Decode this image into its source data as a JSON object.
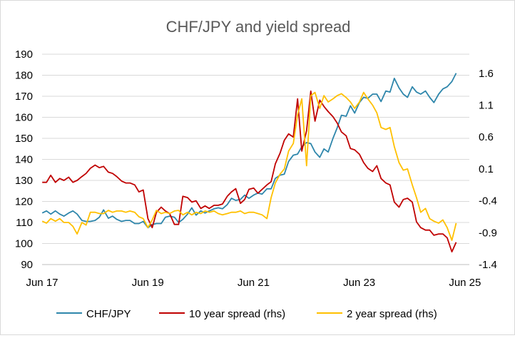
{
  "chart_data": {
    "type": "line",
    "title": "CHF/JPY and yield spread",
    "xlabel": "",
    "ylabel_left": "",
    "ylabel_right": "",
    "x_ticks": [
      "Jun 17",
      "Jun 19",
      "Jun 21",
      "Jun 23",
      "Jun 25"
    ],
    "x_range": [
      2017.417,
      2025.5
    ],
    "y_left": {
      "range": [
        90,
        190
      ],
      "ticks": [
        "90",
        "100",
        "110",
        "120",
        "130",
        "140",
        "150",
        "160",
        "170",
        "180",
        "190"
      ]
    },
    "y_right": {
      "range": [
        -1.4,
        1.9
      ],
      "ticks": [
        "-1.4",
        "-0.9",
        "-0.4",
        "0.1",
        "0.6",
        "1.1",
        "1.6"
      ]
    },
    "grid": true,
    "legend_position": "bottom",
    "series": [
      {
        "name": "CHF/JPY",
        "axis": "left",
        "color": "#2e86ab",
        "points": [
          [
            2017.42,
            114.5
          ],
          [
            2017.5,
            115.5
          ],
          [
            2017.58,
            114
          ],
          [
            2017.67,
            115.5
          ],
          [
            2017.75,
            114
          ],
          [
            2017.83,
            113
          ],
          [
            2017.92,
            114.5
          ],
          [
            2018.0,
            115.5
          ],
          [
            2018.08,
            114
          ],
          [
            2018.17,
            111
          ],
          [
            2018.25,
            110.5
          ],
          [
            2018.33,
            110.5
          ],
          [
            2018.42,
            111
          ],
          [
            2018.5,
            112.5
          ],
          [
            2018.58,
            116
          ],
          [
            2018.67,
            112
          ],
          [
            2018.75,
            113
          ],
          [
            2018.83,
            111.5
          ],
          [
            2018.92,
            110.5
          ],
          [
            2019.0,
            111
          ],
          [
            2019.08,
            111
          ],
          [
            2019.17,
            109.5
          ],
          [
            2019.25,
            109.5
          ],
          [
            2019.33,
            110.5
          ],
          [
            2019.42,
            107.5
          ],
          [
            2019.5,
            109
          ],
          [
            2019.58,
            109.5
          ],
          [
            2019.67,
            109.5
          ],
          [
            2019.75,
            112.5
          ],
          [
            2019.83,
            113
          ],
          [
            2019.92,
            112.5
          ],
          [
            2020.0,
            110
          ],
          [
            2020.08,
            111.5
          ],
          [
            2020.17,
            114
          ],
          [
            2020.25,
            117
          ],
          [
            2020.33,
            113.5
          ],
          [
            2020.42,
            115.5
          ],
          [
            2020.5,
            114.5
          ],
          [
            2020.58,
            115.5
          ],
          [
            2020.67,
            116.5
          ],
          [
            2020.75,
            117
          ],
          [
            2020.83,
            116.5
          ],
          [
            2020.92,
            118.5
          ],
          [
            2021.0,
            121.5
          ],
          [
            2021.08,
            120.5
          ],
          [
            2021.17,
            121
          ],
          [
            2021.25,
            123
          ],
          [
            2021.33,
            121.5
          ],
          [
            2021.42,
            123
          ],
          [
            2021.5,
            124
          ],
          [
            2021.58,
            123.5
          ],
          [
            2021.67,
            126
          ],
          [
            2021.75,
            126
          ],
          [
            2021.83,
            131
          ],
          [
            2021.92,
            132.5
          ],
          [
            2022.0,
            133
          ],
          [
            2022.08,
            139
          ],
          [
            2022.17,
            142
          ],
          [
            2022.25,
            142.5
          ],
          [
            2022.33,
            146
          ],
          [
            2022.42,
            148
          ],
          [
            2022.5,
            147.5
          ],
          [
            2022.58,
            143.5
          ],
          [
            2022.67,
            141
          ],
          [
            2022.75,
            145
          ],
          [
            2022.83,
            143.5
          ],
          [
            2022.92,
            150
          ],
          [
            2023.0,
            155
          ],
          [
            2023.08,
            161
          ],
          [
            2023.17,
            160.5
          ],
          [
            2023.25,
            165.5
          ],
          [
            2023.33,
            162
          ],
          [
            2023.42,
            167
          ],
          [
            2023.5,
            169.5
          ],
          [
            2023.58,
            169
          ],
          [
            2023.67,
            171
          ],
          [
            2023.75,
            171
          ],
          [
            2023.83,
            167.5
          ],
          [
            2023.92,
            172.5
          ],
          [
            2024.0,
            172
          ],
          [
            2024.08,
            178.5
          ],
          [
            2024.17,
            174
          ],
          [
            2024.25,
            171
          ],
          [
            2024.33,
            169.5
          ],
          [
            2024.42,
            174.5
          ],
          [
            2024.5,
            172
          ],
          [
            2024.58,
            171
          ],
          [
            2024.67,
            172.5
          ],
          [
            2024.75,
            169.5
          ],
          [
            2024.83,
            167
          ],
          [
            2024.92,
            171
          ],
          [
            2025.0,
            173.5
          ],
          [
            2025.08,
            174.5
          ],
          [
            2025.17,
            177
          ],
          [
            2025.25,
            181
          ]
        ]
      },
      {
        "name": "10 year spread (rhs)",
        "axis": "right",
        "color": "#c00000",
        "points": [
          [
            2017.42,
            -0.11
          ],
          [
            2017.5,
            -0.11
          ],
          [
            2017.58,
            0.0
          ],
          [
            2017.67,
            -0.11
          ],
          [
            2017.75,
            -0.05
          ],
          [
            2017.83,
            -0.08
          ],
          [
            2017.92,
            -0.03
          ],
          [
            2018.0,
            -0.11
          ],
          [
            2018.08,
            -0.08
          ],
          [
            2018.17,
            -0.02
          ],
          [
            2018.25,
            0.03
          ],
          [
            2018.33,
            0.11
          ],
          [
            2018.42,
            0.16
          ],
          [
            2018.5,
            0.12
          ],
          [
            2018.58,
            0.14
          ],
          [
            2018.67,
            0.05
          ],
          [
            2018.75,
            0.03
          ],
          [
            2018.83,
            -0.02
          ],
          [
            2018.92,
            -0.09
          ],
          [
            2019.0,
            -0.12
          ],
          [
            2019.08,
            -0.12
          ],
          [
            2019.17,
            -0.15
          ],
          [
            2019.25,
            -0.26
          ],
          [
            2019.33,
            -0.23
          ],
          [
            2019.42,
            -0.68
          ],
          [
            2019.5,
            -0.82
          ],
          [
            2019.58,
            -0.58
          ],
          [
            2019.67,
            -0.5
          ],
          [
            2019.75,
            -0.56
          ],
          [
            2019.83,
            -0.6
          ],
          [
            2019.92,
            -0.77
          ],
          [
            2020.0,
            -0.77
          ],
          [
            2020.08,
            -0.33
          ],
          [
            2020.17,
            -0.35
          ],
          [
            2020.25,
            -0.42
          ],
          [
            2020.33,
            -0.4
          ],
          [
            2020.42,
            -0.52
          ],
          [
            2020.5,
            -0.48
          ],
          [
            2020.58,
            -0.52
          ],
          [
            2020.67,
            -0.47
          ],
          [
            2020.75,
            -0.47
          ],
          [
            2020.83,
            -0.45
          ],
          [
            2020.92,
            -0.33
          ],
          [
            2021.0,
            -0.26
          ],
          [
            2021.08,
            -0.21
          ],
          [
            2021.17,
            -0.44
          ],
          [
            2021.25,
            -0.38
          ],
          [
            2021.33,
            -0.22
          ],
          [
            2021.42,
            -0.2
          ],
          [
            2021.5,
            -0.28
          ],
          [
            2021.58,
            -0.22
          ],
          [
            2021.67,
            -0.15
          ],
          [
            2021.75,
            -0.1
          ],
          [
            2021.83,
            0.18
          ],
          [
            2021.92,
            0.35
          ],
          [
            2022.0,
            0.55
          ],
          [
            2022.08,
            0.65
          ],
          [
            2022.17,
            0.6
          ],
          [
            2022.25,
            1.2
          ],
          [
            2022.33,
            0.38
          ],
          [
            2022.42,
            0.7
          ],
          [
            2022.5,
            1.32
          ],
          [
            2022.58,
            0.85
          ],
          [
            2022.67,
            1.18
          ],
          [
            2022.75,
            1.08
          ],
          [
            2022.83,
            1.0
          ],
          [
            2022.92,
            0.92
          ],
          [
            2023.0,
            0.82
          ],
          [
            2023.08,
            0.68
          ],
          [
            2023.17,
            0.62
          ],
          [
            2023.25,
            0.42
          ],
          [
            2023.33,
            0.4
          ],
          [
            2023.42,
            0.33
          ],
          [
            2023.5,
            0.2
          ],
          [
            2023.58,
            0.11
          ],
          [
            2023.67,
            0.06
          ],
          [
            2023.75,
            0.15
          ],
          [
            2023.83,
            -0.05
          ],
          [
            2023.92,
            -0.12
          ],
          [
            2024.0,
            -0.15
          ],
          [
            2024.08,
            -0.42
          ],
          [
            2024.17,
            -0.5
          ],
          [
            2024.25,
            -0.38
          ],
          [
            2024.33,
            -0.36
          ],
          [
            2024.42,
            -0.42
          ],
          [
            2024.5,
            -0.73
          ],
          [
            2024.58,
            -0.82
          ],
          [
            2024.67,
            -0.86
          ],
          [
            2024.75,
            -0.86
          ],
          [
            2024.83,
            -0.94
          ],
          [
            2024.92,
            -0.92
          ],
          [
            2025.0,
            -0.92
          ],
          [
            2025.08,
            -0.98
          ],
          [
            2025.17,
            -1.2
          ],
          [
            2025.25,
            -1.05
          ]
        ]
      },
      {
        "name": "2 year spread (rhs)",
        "axis": "right",
        "color": "#ffc000",
        "points": [
          [
            2017.42,
            -0.72
          ],
          [
            2017.5,
            -0.75
          ],
          [
            2017.58,
            -0.68
          ],
          [
            2017.67,
            -0.72
          ],
          [
            2017.75,
            -0.68
          ],
          [
            2017.83,
            -0.74
          ],
          [
            2017.92,
            -0.74
          ],
          [
            2018.0,
            -0.8
          ],
          [
            2018.08,
            -0.92
          ],
          [
            2018.17,
            -0.74
          ],
          [
            2018.25,
            -0.78
          ],
          [
            2018.33,
            -0.58
          ],
          [
            2018.42,
            -0.58
          ],
          [
            2018.5,
            -0.6
          ],
          [
            2018.58,
            -0.6
          ],
          [
            2018.67,
            -0.55
          ],
          [
            2018.75,
            -0.58
          ],
          [
            2018.83,
            -0.56
          ],
          [
            2018.92,
            -0.56
          ],
          [
            2019.0,
            -0.58
          ],
          [
            2019.08,
            -0.56
          ],
          [
            2019.17,
            -0.58
          ],
          [
            2019.25,
            -0.65
          ],
          [
            2019.33,
            -0.68
          ],
          [
            2019.42,
            -0.82
          ],
          [
            2019.5,
            -0.7
          ],
          [
            2019.58,
            -0.55
          ],
          [
            2019.67,
            -0.6
          ],
          [
            2019.75,
            -0.58
          ],
          [
            2019.83,
            -0.6
          ],
          [
            2019.92,
            -0.56
          ],
          [
            2020.0,
            -0.55
          ],
          [
            2020.08,
            -0.62
          ],
          [
            2020.17,
            -0.58
          ],
          [
            2020.25,
            -0.62
          ],
          [
            2020.33,
            -0.58
          ],
          [
            2020.42,
            -0.6
          ],
          [
            2020.5,
            -0.56
          ],
          [
            2020.58,
            -0.58
          ],
          [
            2020.67,
            -0.56
          ],
          [
            2020.75,
            -0.6
          ],
          [
            2020.83,
            -0.62
          ],
          [
            2020.92,
            -0.6
          ],
          [
            2021.0,
            -0.58
          ],
          [
            2021.08,
            -0.58
          ],
          [
            2021.17,
            -0.56
          ],
          [
            2021.25,
            -0.6
          ],
          [
            2021.33,
            -0.58
          ],
          [
            2021.42,
            -0.58
          ],
          [
            2021.5,
            -0.6
          ],
          [
            2021.58,
            -0.62
          ],
          [
            2021.67,
            -0.68
          ],
          [
            2021.75,
            -0.35
          ],
          [
            2021.83,
            -0.12
          ],
          [
            2021.92,
            0.02
          ],
          [
            2022.0,
            0.1
          ],
          [
            2022.08,
            0.38
          ],
          [
            2022.17,
            0.5
          ],
          [
            2022.25,
            0.95
          ],
          [
            2022.33,
            1.2
          ],
          [
            2022.42,
            0.15
          ],
          [
            2022.5,
            1.25
          ],
          [
            2022.58,
            1.3
          ],
          [
            2022.67,
            1.05
          ],
          [
            2022.75,
            1.25
          ],
          [
            2022.83,
            1.15
          ],
          [
            2022.92,
            1.2
          ],
          [
            2023.0,
            1.25
          ],
          [
            2023.08,
            1.28
          ],
          [
            2023.17,
            1.22
          ],
          [
            2023.25,
            1.15
          ],
          [
            2023.33,
            1.05
          ],
          [
            2023.42,
            1.15
          ],
          [
            2023.5,
            1.3
          ],
          [
            2023.58,
            1.2
          ],
          [
            2023.67,
            1.1
          ],
          [
            2023.75,
            0.98
          ],
          [
            2023.83,
            0.75
          ],
          [
            2023.92,
            0.72
          ],
          [
            2024.0,
            0.75
          ],
          [
            2024.08,
            0.45
          ],
          [
            2024.17,
            0.2
          ],
          [
            2024.25,
            0.08
          ],
          [
            2024.33,
            0.1
          ],
          [
            2024.42,
            -0.15
          ],
          [
            2024.5,
            -0.35
          ],
          [
            2024.58,
            -0.58
          ],
          [
            2024.67,
            -0.52
          ],
          [
            2024.75,
            -0.68
          ],
          [
            2024.83,
            -0.72
          ],
          [
            2024.92,
            -0.75
          ],
          [
            2025.0,
            -0.7
          ],
          [
            2025.08,
            -0.82
          ],
          [
            2025.17,
            -1.02
          ],
          [
            2025.25,
            -0.75
          ]
        ]
      }
    ]
  }
}
